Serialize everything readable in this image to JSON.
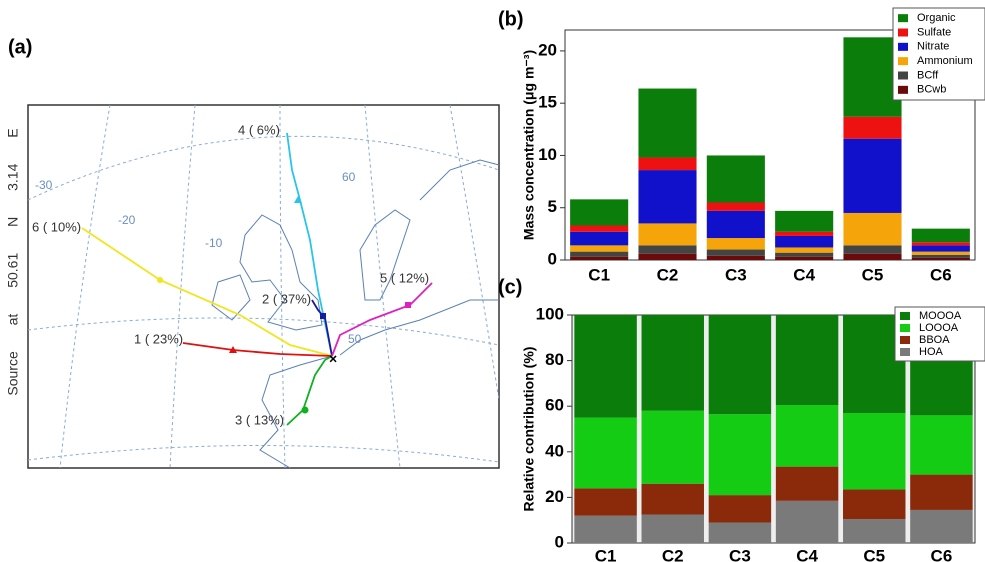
{
  "map": {
    "panel_label": "(a)",
    "source": "Source at 50.61 N 3.14 E",
    "graticule": [
      "-30",
      "-20",
      "-10",
      "60",
      "50"
    ],
    "trajectories": [
      "4 ( 6%)",
      "6 ( 10%)",
      "2 ( 37%)",
      "5 ( 12%)",
      "1 ( 23%)",
      "3 ( 13%)"
    ]
  },
  "chart_data": [
    {
      "type": "bar",
      "stacked": true,
      "title": "(b)",
      "ylabel": "Mass concentration (μg m⁻³)",
      "categories": [
        "C1",
        "C2",
        "C3",
        "C4",
        "C5",
        "C6"
      ],
      "series": [
        {
          "name": "Organic",
          "color": "#0a7d0a",
          "values": [
            2.5,
            6.6,
            4.5,
            2.0,
            7.6,
            1.3
          ]
        },
        {
          "name": "Sulfate",
          "color": "#ee1111",
          "values": [
            0.6,
            1.2,
            0.8,
            0.4,
            2.1,
            0.3
          ]
        },
        {
          "name": "Nitrate",
          "color": "#1111cc",
          "values": [
            1.3,
            5.1,
            2.6,
            1.1,
            7.1,
            0.6
          ]
        },
        {
          "name": "Ammonium",
          "color": "#f5a40a",
          "values": [
            0.6,
            2.1,
            1.1,
            0.5,
            3.1,
            0.3
          ]
        },
        {
          "name": "BCff",
          "color": "#444444",
          "values": [
            0.5,
            0.8,
            0.6,
            0.4,
            0.8,
            0.3
          ]
        },
        {
          "name": "BCwb",
          "color": "#6b0a0a",
          "values": [
            0.3,
            0.6,
            0.4,
            0.3,
            0.6,
            0.2
          ]
        }
      ],
      "ylim": [
        0,
        22
      ],
      "yticks": [
        0,
        5,
        10,
        15,
        20
      ]
    },
    {
      "type": "bar",
      "stacked": true,
      "title": "(c)",
      "ylabel": "Relative contribution (%)",
      "categories": [
        "C1",
        "C2",
        "C3",
        "C4",
        "C5",
        "C6"
      ],
      "series": [
        {
          "name": "MOOOA",
          "color": "#0a7d0a",
          "values": [
            45,
            42,
            43.5,
            39.5,
            43,
            44
          ]
        },
        {
          "name": "LOOOA",
          "color": "#14cc14",
          "values": [
            31,
            32,
            35.5,
            27,
            33.5,
            26
          ]
        },
        {
          "name": "BBOA",
          "color": "#8b2a0a",
          "values": [
            12,
            13.5,
            12,
            15,
            13,
            15.5
          ]
        },
        {
          "name": "HOA",
          "color": "#7a7a7a",
          "values": [
            12,
            12.5,
            9,
            18.5,
            10.5,
            14.5
          ]
        }
      ],
      "ylim": [
        0,
        100
      ],
      "yticks": [
        0,
        20,
        40,
        60,
        80,
        100
      ]
    }
  ]
}
